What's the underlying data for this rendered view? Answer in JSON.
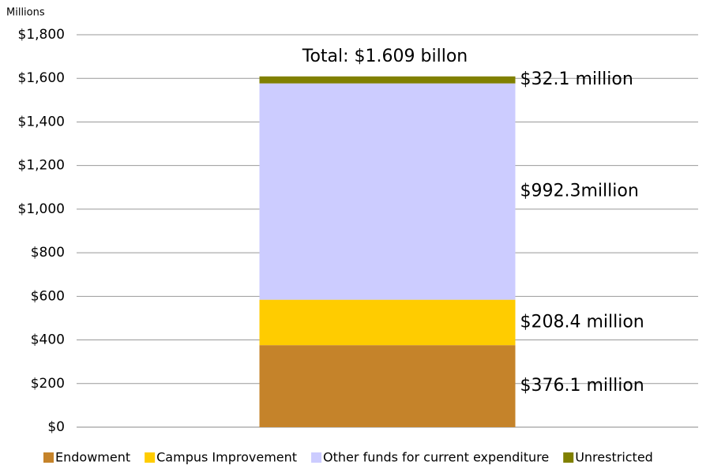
{
  "chart_data": {
    "type": "stacked_bar",
    "y_axis_label": "Millions",
    "annotation": "Total: $1.609 billon",
    "categories": [
      null
    ],
    "series": [
      {
        "name": "Endowment",
        "color": "#c5832a",
        "values": [
          376.1
        ],
        "value_labels": [
          "$376.1 million"
        ]
      },
      {
        "name": "Campus Improvement",
        "color": "#ffcc00",
        "values": [
          208.4
        ],
        "value_labels": [
          "$208.4 million"
        ]
      },
      {
        "name": "Other funds for current expenditure",
        "color": "#ccccff",
        "values": [
          992.3
        ],
        "value_labels": [
          "$992.3million"
        ]
      },
      {
        "name": "Unrestricted",
        "color": "#808000",
        "values": [
          32.1
        ],
        "value_labels": [
          "$32.1 million"
        ]
      }
    ],
    "ylim": [
      0,
      1800
    ],
    "yticks": [
      {
        "value": 0,
        "label": "$0"
      },
      {
        "value": 200,
        "label": "$200"
      },
      {
        "value": 400,
        "label": "$400"
      },
      {
        "value": 600,
        "label": "$600"
      },
      {
        "value": 800,
        "label": "$800"
      },
      {
        "value": 1000,
        "label": "$1,000"
      },
      {
        "value": 1200,
        "label": "$1,200"
      },
      {
        "value": 1400,
        "label": "$1,400"
      },
      {
        "value": 1600,
        "label": "$1,600"
      },
      {
        "value": 1800,
        "label": "$1,800"
      }
    ],
    "grid": true,
    "legend": "bottom"
  }
}
